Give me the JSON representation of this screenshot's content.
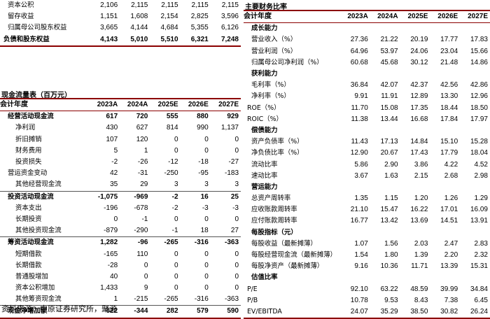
{
  "balance_tail": {
    "rows": [
      {
        "label": "资本公积",
        "values": [
          "2,106",
          "2,115",
          "2,115",
          "2,115",
          "2,115"
        ],
        "bold": false
      },
      {
        "label": "留存收益",
        "values": [
          "1,151",
          "1,608",
          "2,154",
          "2,825",
          "3,596"
        ],
        "bold": false
      },
      {
        "label": "归属母公司股东权益",
        "values": [
          "3,665",
          "4,144",
          "4,684",
          "5,355",
          "6,126"
        ],
        "bold": false
      },
      {
        "label": "负债和股东权益",
        "values": [
          "4,143",
          "5,010",
          "5,510",
          "6,321",
          "7,248"
        ],
        "bold": true
      }
    ]
  },
  "cashflow": {
    "title": "现金流量表（百万元）",
    "header": {
      "label": "会计年度",
      "years": [
        "2023A",
        "2024A",
        "2025E",
        "2026E",
        "2027E"
      ]
    },
    "rows": [
      {
        "label": "经营活动现金流",
        "values": [
          "617",
          "720",
          "555",
          "880",
          "929"
        ],
        "bold": true
      },
      {
        "label": "净利润",
        "values": [
          "430",
          "627",
          "814",
          "990",
          "1,137"
        ],
        "bold": false
      },
      {
        "label": "折旧摊销",
        "values": [
          "107",
          "120",
          "0",
          "0",
          "0"
        ],
        "bold": false
      },
      {
        "label": "财务费用",
        "values": [
          "5",
          "1",
          "0",
          "0",
          "0"
        ],
        "bold": false
      },
      {
        "label": "投资损失",
        "values": [
          "-2",
          "-26",
          "-12",
          "-18",
          "-27"
        ],
        "bold": false
      },
      {
        "label": "营运资金变动",
        "values": [
          "42",
          "-31",
          "-250",
          "-95",
          "-183"
        ],
        "bold": false
      },
      {
        "label": "其他经营现金流",
        "values": [
          "35",
          "29",
          "3",
          "3",
          "3"
        ],
        "bold": false
      },
      {
        "label": "投资活动现金流",
        "values": [
          "-1,075",
          "-969",
          "-2",
          "16",
          "25"
        ],
        "bold": true
      },
      {
        "label": "资本支出",
        "values": [
          "-196",
          "-678",
          "-2",
          "-3",
          "-3"
        ],
        "bold": false
      },
      {
        "label": "长期投资",
        "values": [
          "0",
          "-1",
          "0",
          "0",
          "0"
        ],
        "bold": false
      },
      {
        "label": "其他投资现金流",
        "values": [
          "-879",
          "-290",
          "-1",
          "18",
          "27"
        ],
        "bold": false
      },
      {
        "label": "筹资活动现金流",
        "values": [
          "1,282",
          "-96",
          "-265",
          "-316",
          "-363"
        ],
        "bold": true
      },
      {
        "label": "短期借款",
        "values": [
          "-165",
          "110",
          "0",
          "0",
          "0"
        ],
        "bold": false
      },
      {
        "label": "长期借款",
        "values": [
          "-28",
          "0",
          "0",
          "0",
          "0"
        ],
        "bold": false
      },
      {
        "label": "普通股增加",
        "values": [
          "40",
          "0",
          "0",
          "0",
          "0"
        ],
        "bold": false
      },
      {
        "label": "资本公积增加",
        "values": [
          "1,433",
          "9",
          "0",
          "0",
          "0"
        ],
        "bold": false
      },
      {
        "label": "其他筹资现金流",
        "values": [
          "1",
          "-215",
          "-265",
          "-316",
          "-363"
        ],
        "bold": false
      },
      {
        "label": "现金净增加额",
        "values": [
          "822",
          "-344",
          "282",
          "579",
          "590"
        ],
        "bold": true
      }
    ]
  },
  "ratios": {
    "title": "主要财务比率",
    "header": {
      "label": "会计年度",
      "years": [
        "2023A",
        "2024A",
        "2025E",
        "2026E",
        "2027E"
      ]
    },
    "rows": [
      {
        "label": "成长能力",
        "values": null
      },
      {
        "label": "营业收入（%）",
        "values": [
          "27.36",
          "21.22",
          "20.19",
          "17.77",
          "17.83"
        ]
      },
      {
        "label": "营业利润（%）",
        "values": [
          "64.96",
          "53.97",
          "24.06",
          "23.04",
          "15.66"
        ]
      },
      {
        "label": "归属母公司净利润（%）",
        "values": [
          "60.68",
          "45.68",
          "30.12",
          "21.48",
          "14.86"
        ]
      },
      {
        "label": "获利能力",
        "values": null
      },
      {
        "label": "毛利率（%）",
        "values": [
          "36.84",
          "42.07",
          "42.37",
          "42.56",
          "42.86"
        ]
      },
      {
        "label": "净利率（%）",
        "values": [
          "9.91",
          "11.91",
          "12.89",
          "13.30",
          "12.96"
        ]
      },
      {
        "label": "ROE（%）",
        "values": [
          "11.70",
          "15.08",
          "17.35",
          "18.44",
          "18.50"
        ]
      },
      {
        "label": "ROIC（%）",
        "values": [
          "11.38",
          "13.44",
          "16.68",
          "17.84",
          "17.97"
        ]
      },
      {
        "label": "偿债能力",
        "values": null
      },
      {
        "label": "资产负债率（%）",
        "values": [
          "11.43",
          "17.13",
          "14.84",
          "15.10",
          "15.28"
        ]
      },
      {
        "label": "净负债比率（%）",
        "values": [
          "12.90",
          "20.67",
          "17.43",
          "17.79",
          "18.04"
        ]
      },
      {
        "label": "流动比率",
        "values": [
          "5.86",
          "2.90",
          "3.86",
          "4.22",
          "4.52"
        ]
      },
      {
        "label": "速动比率",
        "values": [
          "3.67",
          "1.63",
          "2.15",
          "2.68",
          "2.98"
        ]
      },
      {
        "label": "营运能力",
        "values": null
      },
      {
        "label": "总资产周转率",
        "values": [
          "1.35",
          "1.15",
          "1.20",
          "1.26",
          "1.29"
        ]
      },
      {
        "label": "应收账款周转率",
        "values": [
          "21.10",
          "15.47",
          "16.22",
          "17.01",
          "16.09"
        ]
      },
      {
        "label": "应付账款周转率",
        "values": [
          "16.77",
          "13.42",
          "13.69",
          "14.51",
          "13.91"
        ]
      },
      {
        "label": "每股指标（元）",
        "values": null
      },
      {
        "label": "每股收益（最新摊薄）",
        "values": [
          "1.07",
          "1.56",
          "2.03",
          "2.47",
          "2.83"
        ]
      },
      {
        "label": "每股经营现金流（最新摊薄）",
        "values": [
          "1.54",
          "1.80",
          "1.39",
          "2.20",
          "2.32"
        ]
      },
      {
        "label": "每股净资产（最新摊薄）",
        "values": [
          "9.16",
          "10.36",
          "11.71",
          "13.39",
          "15.31"
        ]
      },
      {
        "label": "估值比率",
        "values": null
      },
      {
        "label": "P/E",
        "values": [
          "92.10",
          "63.22",
          "48.59",
          "39.99",
          "34.84"
        ]
      },
      {
        "label": "P/B",
        "values": [
          "10.78",
          "9.53",
          "8.43",
          "7.38",
          "6.45"
        ]
      },
      {
        "label": "EV/EBITDA",
        "values": [
          "24.07",
          "35.29",
          "38.50",
          "30.82",
          "26.24"
        ]
      }
    ]
  },
  "footer": "资料来源：中原证券研究所，聚源"
}
